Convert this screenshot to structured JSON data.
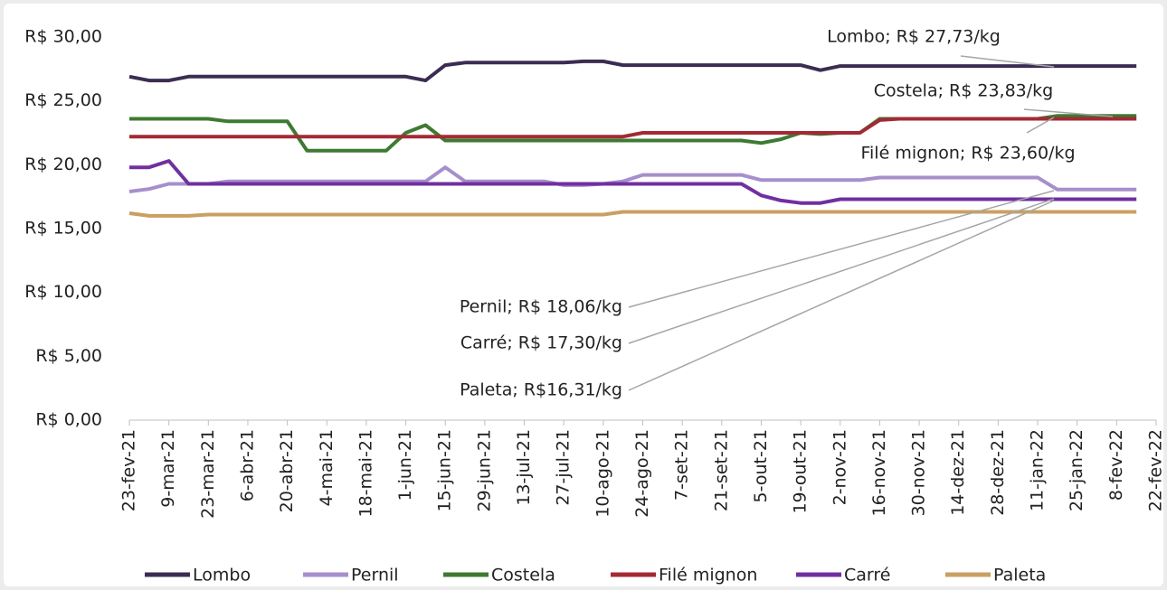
{
  "chart_data": {
    "type": "line",
    "categories": [
      "23-fev-21",
      null,
      "9-mar-21",
      null,
      "23-mar-21",
      null,
      "6-abr-21",
      null,
      "20-abr-21",
      null,
      "4-mai-21",
      null,
      "18-mai-21",
      null,
      "1-jun-21",
      null,
      "15-jun-21",
      null,
      "29-jun-21",
      null,
      "13-jul-21",
      null,
      "27-jul-21",
      null,
      "10-ago-21",
      null,
      "24-ago-21",
      null,
      "7-set-21",
      null,
      "21-set-21",
      null,
      "5-out-21",
      null,
      "19-out-21",
      null,
      "2-nov-21",
      null,
      "16-nov-21",
      null,
      "30-nov-21",
      null,
      "14-dez-21",
      null,
      "28-dez-21",
      null,
      "11-jan-22",
      null,
      "25-jan-22",
      null,
      "8-fev-22",
      null,
      "22-fev-22"
    ],
    "series": [
      {
        "name": "Lombo",
        "color": "#3b2d52",
        "values": [
          26.9,
          26.6,
          26.6,
          26.9,
          26.9,
          26.9,
          26.9,
          26.9,
          26.9,
          26.9,
          26.9,
          26.9,
          26.9,
          26.9,
          26.9,
          26.6,
          27.8,
          28.0,
          28.0,
          28.0,
          28.0,
          28.0,
          28.0,
          28.1,
          28.1,
          27.8,
          27.8,
          27.8,
          27.8,
          27.8,
          27.8,
          27.8,
          27.8,
          27.8,
          27.8,
          27.4,
          27.73,
          27.73,
          27.73,
          27.73,
          27.73,
          27.73,
          27.73,
          27.73,
          27.73,
          27.73,
          27.73,
          27.73,
          27.73,
          27.73,
          27.73,
          27.73,
          null
        ]
      },
      {
        "name": "Pernil",
        "color": "#a68fcc",
        "values": [
          17.9,
          18.1,
          18.5,
          18.5,
          18.5,
          18.7,
          18.7,
          18.7,
          18.7,
          18.7,
          18.7,
          18.7,
          18.7,
          18.7,
          18.7,
          18.7,
          19.8,
          18.7,
          18.7,
          18.7,
          18.7,
          18.7,
          18.4,
          18.4,
          18.5,
          18.7,
          19.2,
          19.2,
          19.2,
          19.2,
          19.2,
          19.2,
          18.8,
          18.8,
          18.8,
          18.8,
          18.8,
          18.8,
          19.0,
          19.0,
          19.0,
          19.0,
          19.0,
          19.0,
          19.0,
          19.0,
          19.0,
          18.06,
          18.06,
          18.06,
          18.06,
          18.06,
          null
        ]
      },
      {
        "name": "Costela",
        "color": "#3e7a32",
        "values": [
          23.6,
          23.6,
          23.6,
          23.6,
          23.6,
          23.4,
          23.4,
          23.4,
          23.4,
          21.1,
          21.1,
          21.1,
          21.1,
          21.1,
          22.5,
          23.1,
          21.9,
          21.9,
          21.9,
          21.9,
          21.9,
          21.9,
          21.9,
          21.9,
          21.9,
          21.9,
          21.9,
          21.9,
          21.9,
          21.9,
          21.9,
          21.9,
          21.7,
          22.0,
          22.5,
          22.4,
          22.5,
          22.5,
          23.6,
          23.6,
          23.6,
          23.6,
          23.6,
          23.6,
          23.6,
          23.6,
          23.6,
          23.83,
          23.83,
          23.83,
          23.83,
          23.83,
          null
        ]
      },
      {
        "name": "Filé mignon",
        "color": "#a32a34",
        "values": [
          22.2,
          22.2,
          22.2,
          22.2,
          22.2,
          22.2,
          22.2,
          22.2,
          22.2,
          22.2,
          22.2,
          22.2,
          22.2,
          22.2,
          22.2,
          22.2,
          22.2,
          22.2,
          22.2,
          22.2,
          22.2,
          22.2,
          22.2,
          22.2,
          22.2,
          22.2,
          22.5,
          22.5,
          22.5,
          22.5,
          22.5,
          22.5,
          22.5,
          22.5,
          22.5,
          22.5,
          22.5,
          22.5,
          23.5,
          23.6,
          23.6,
          23.6,
          23.6,
          23.6,
          23.6,
          23.6,
          23.6,
          23.6,
          23.6,
          23.6,
          23.6,
          23.6,
          null
        ]
      },
      {
        "name": "Carré",
        "color": "#7030a0",
        "values": [
          19.8,
          19.8,
          20.3,
          18.5,
          18.5,
          18.5,
          18.5,
          18.5,
          18.5,
          18.5,
          18.5,
          18.5,
          18.5,
          18.5,
          18.5,
          18.5,
          18.5,
          18.5,
          18.5,
          18.5,
          18.5,
          18.5,
          18.5,
          18.5,
          18.5,
          18.5,
          18.5,
          18.5,
          18.5,
          18.5,
          18.5,
          18.5,
          17.6,
          17.2,
          17.0,
          17.0,
          17.3,
          17.3,
          17.3,
          17.3,
          17.3,
          17.3,
          17.3,
          17.3,
          17.3,
          17.3,
          17.3,
          17.3,
          17.3,
          17.3,
          17.3,
          17.3,
          null
        ]
      },
      {
        "name": "Paleta",
        "color": "#c9a062",
        "values": [
          16.2,
          16.0,
          16.0,
          16.0,
          16.1,
          16.1,
          16.1,
          16.1,
          16.1,
          16.1,
          16.1,
          16.1,
          16.1,
          16.1,
          16.1,
          16.1,
          16.1,
          16.1,
          16.1,
          16.1,
          16.1,
          16.1,
          16.1,
          16.1,
          16.1,
          16.31,
          16.31,
          16.31,
          16.31,
          16.31,
          16.31,
          16.31,
          16.31,
          16.31,
          16.31,
          16.31,
          16.31,
          16.31,
          16.31,
          16.31,
          16.31,
          16.31,
          16.31,
          16.31,
          16.31,
          16.31,
          16.31,
          16.31,
          16.31,
          16.31,
          16.31,
          16.31,
          null
        ]
      }
    ],
    "ylim": [
      0,
      30
    ],
    "yticks": [
      {
        "value": 0,
        "label": "R$ 0,00"
      },
      {
        "value": 5,
        "label": "R$ 5,00"
      },
      {
        "value": 10,
        "label": "R$ 10,00"
      },
      {
        "value": 15,
        "label": "R$ 15,00"
      },
      {
        "value": 20,
        "label": "R$ 20,00"
      },
      {
        "value": 25,
        "label": "R$ 25,00"
      },
      {
        "value": 30,
        "label": "R$ 30,00"
      }
    ],
    "annotations": [
      "Lombo; R$ 27,73/kg",
      "Costela; R$ 23,83/kg",
      "Filé mignon; R$ 23,60/kg",
      "Pernil; R$ 18,06/kg",
      "Carré; R$ 17,30/kg",
      "Paleta; R$16,31/kg"
    ],
    "legend": "bottom"
  }
}
